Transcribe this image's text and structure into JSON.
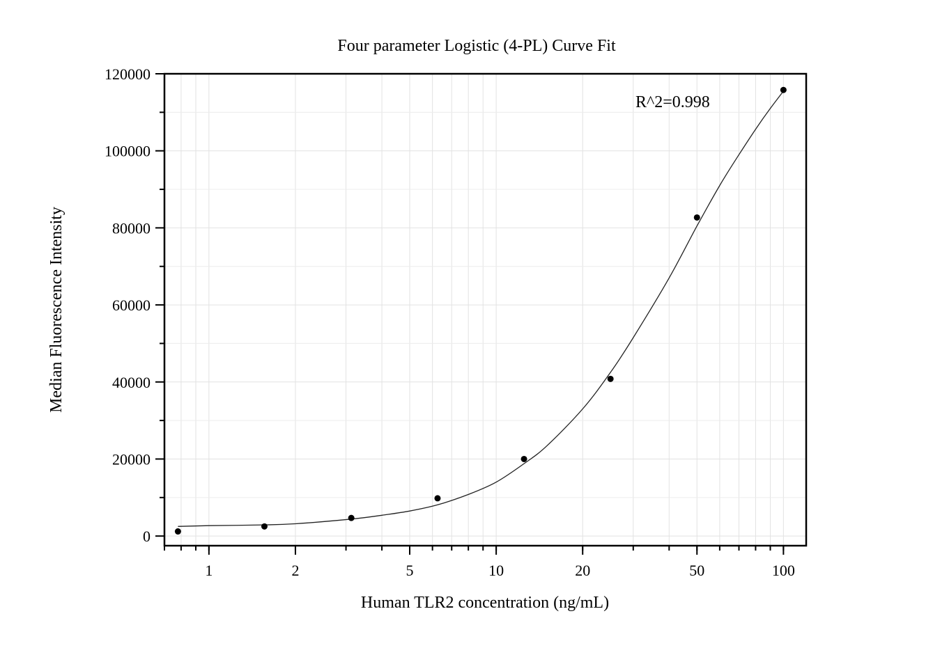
{
  "chart_data": {
    "type": "scatter",
    "title": "Four parameter Logistic (4-PL) Curve Fit",
    "xlabel": "Human TLR2 concentration (ng/mL)",
    "ylabel": "Median Fluorescence Intensity",
    "x_scale": "log",
    "xlim": [
      0.7,
      120
    ],
    "ylim": [
      -2500,
      120000
    ],
    "x_ticks": [
      1,
      2,
      5,
      10,
      20,
      50,
      100
    ],
    "x_tick_labels": [
      "1",
      "2",
      "5",
      "10",
      "20",
      "50",
      "100"
    ],
    "y_ticks": [
      0,
      20000,
      40000,
      60000,
      80000,
      100000,
      120000
    ],
    "y_tick_labels": [
      "0",
      "20000",
      "40000",
      "60000",
      "80000",
      "100000",
      "120000"
    ],
    "grid": true,
    "annotation": "R^2=0.998",
    "series": [
      {
        "points": [
          {
            "x": 0.78,
            "y": 1200
          },
          {
            "x": 1.56,
            "y": 2500
          },
          {
            "x": 3.13,
            "y": 4700
          },
          {
            "x": 6.25,
            "y": 9800
          },
          {
            "x": 12.5,
            "y": 20000
          },
          {
            "x": 25,
            "y": 40800
          },
          {
            "x": 50,
            "y": 82700
          },
          {
            "x": 100,
            "y": 115800
          }
        ]
      }
    ],
    "fit_curve": {
      "model": "4PL",
      "x": [
        0.78,
        1,
        1.56,
        2,
        3.13,
        4,
        5,
        6.25,
        8,
        10,
        12.5,
        15,
        20,
        25,
        30,
        40,
        50,
        60,
        70,
        80,
        90,
        100
      ],
      "y": [
        2500,
        2700,
        2900,
        3200,
        4400,
        5400,
        6500,
        8100,
        10800,
        14000,
        18800,
        23400,
        33000,
        42500,
        51500,
        67000,
        80500,
        91000,
        99000,
        105600,
        111000,
        115500
      ]
    }
  }
}
